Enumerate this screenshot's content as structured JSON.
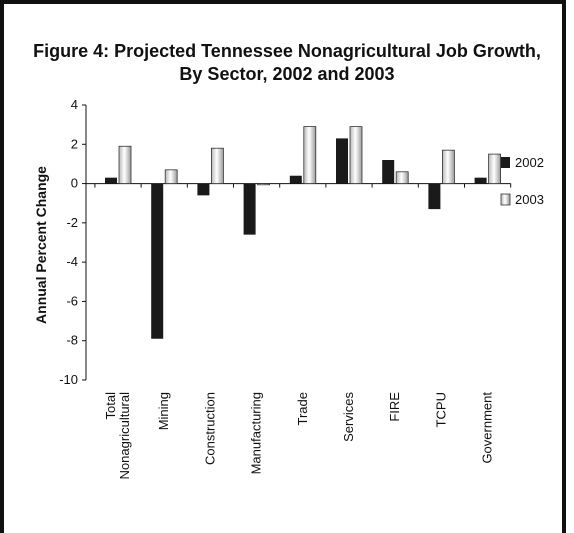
{
  "chart_data": {
    "type": "bar",
    "title_line1": "Figure 4: Projected Tennessee Nonagricultural Job Growth,",
    "title_line2": "By Sector, 2002 and 2003",
    "xlabel": "",
    "ylabel": "Annual Percent Change",
    "ylim": [
      -10,
      4
    ],
    "yticks": [
      "4",
      "2",
      "0",
      "-2",
      "-4",
      "-6",
      "-8",
      "-10"
    ],
    "categories": [
      [
        "Total",
        "Nonagricultural"
      ],
      [
        "Mining"
      ],
      [
        "Construction"
      ],
      [
        "Manufacturing"
      ],
      [
        "Trade"
      ],
      [
        "Services"
      ],
      [
        "FIRE"
      ],
      [
        "TCPU"
      ],
      [
        "Government"
      ]
    ],
    "series": [
      {
        "name": "2002",
        "color": "#1a1a1a",
        "values": [
          0.3,
          -7.9,
          -0.6,
          -2.6,
          0.4,
          2.3,
          1.2,
          -1.3,
          0.3
        ]
      },
      {
        "name": "2003",
        "color": "#d9d9d9",
        "values": [
          1.9,
          0.7,
          1.8,
          -0.05,
          2.9,
          2.9,
          0.6,
          1.7,
          1.5
        ]
      }
    ],
    "legend_position": "right",
    "grid": false
  }
}
